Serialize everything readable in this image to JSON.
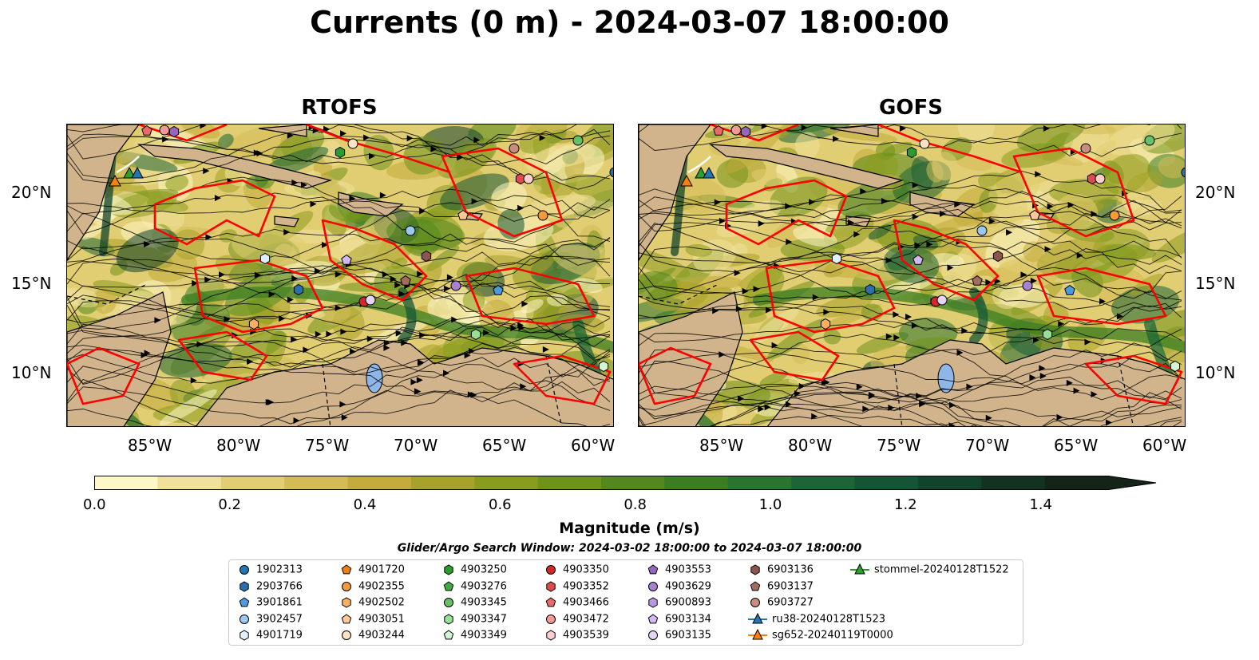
{
  "title": "Currents (0 m) - 2024-03-07 18:00:00",
  "panels": [
    {
      "title": "RTOFS"
    },
    {
      "title": "GOFS"
    }
  ],
  "axes": {
    "lon_ticks": [
      "85°W",
      "80°W",
      "75°W",
      "70°W",
      "65°W",
      "60°W"
    ],
    "lat_ticks": [
      "20°N",
      "15°N",
      "10°N"
    ]
  },
  "colorbar": {
    "label": "Magnitude (m/s)",
    "ticks": [
      "0.0",
      "0.2",
      "0.4",
      "0.6",
      "0.8",
      "1.0",
      "1.2",
      "1.4"
    ],
    "range": [
      0,
      1.5
    ],
    "extend": "max",
    "colors": [
      "#fdf8c7",
      "#f0e29a",
      "#e1cd72",
      "#d3bb55",
      "#c3ab3c",
      "#a7a22a",
      "#8a9c1d",
      "#6f9219",
      "#52881c",
      "#3b7d22",
      "#2a7330",
      "#1d6536",
      "#155535",
      "#12442d",
      "#123322",
      "#152418"
    ]
  },
  "search_window": "Glider/Argo Search Window: 2024-03-02 18:00:00 to 2024-03-07 18:00:00",
  "legend": {
    "items": [
      {
        "label": "1902313",
        "marker": "circle",
        "color": "#1f77b4"
      },
      {
        "label": "2903766",
        "marker": "hexagon",
        "color": "#2a6fb0"
      },
      {
        "label": "3901861",
        "marker": "pentagon",
        "color": "#4c9be0"
      },
      {
        "label": "3902457",
        "marker": "circle",
        "color": "#9cc8f0"
      },
      {
        "label": "4901719",
        "marker": "hexagon",
        "color": "#dff0fb"
      },
      {
        "label": "4901720",
        "marker": "pentagon",
        "color": "#f07f0e"
      },
      {
        "label": "4902355",
        "marker": "circle",
        "color": "#f59b3a"
      },
      {
        "label": "4902502",
        "marker": "hexagon",
        "color": "#f8b060"
      },
      {
        "label": "4903051",
        "marker": "pentagon",
        "color": "#fcc996"
      },
      {
        "label": "4903244",
        "marker": "circle",
        "color": "#fde3c4"
      },
      {
        "label": "4903250",
        "marker": "hexagon",
        "color": "#2a9d2a"
      },
      {
        "label": "4903276",
        "marker": "pentagon",
        "color": "#3fae3f"
      },
      {
        "label": "4903345",
        "marker": "circle",
        "color": "#66c266"
      },
      {
        "label": "4903347",
        "marker": "hexagon",
        "color": "#98e098"
      },
      {
        "label": "4903349",
        "marker": "pentagon",
        "color": "#d3f5d3"
      },
      {
        "label": "4903350",
        "marker": "circle",
        "color": "#d62728"
      },
      {
        "label": "4903352",
        "marker": "hexagon",
        "color": "#e04a4a"
      },
      {
        "label": "4903466",
        "marker": "pentagon",
        "color": "#ea6a6a"
      },
      {
        "label": "4903472",
        "marker": "circle",
        "color": "#f29b94"
      },
      {
        "label": "4903539",
        "marker": "hexagon",
        "color": "#fbd0cc"
      },
      {
        "label": "4903553",
        "marker": "pentagon",
        "color": "#9467bd"
      },
      {
        "label": "4903629",
        "marker": "circle",
        "color": "#a782d0"
      },
      {
        "label": "6900893",
        "marker": "hexagon",
        "color": "#b898e0"
      },
      {
        "label": "6903134",
        "marker": "pentagon",
        "color": "#d2b8f0"
      },
      {
        "label": "6903135",
        "marker": "circle",
        "color": "#e6d4f7"
      },
      {
        "label": "6903136",
        "marker": "hexagon",
        "color": "#8c564b"
      },
      {
        "label": "6903137",
        "marker": "pentagon",
        "color": "#a56b5f"
      },
      {
        "label": "6903727",
        "marker": "circle",
        "color": "#c98c7e"
      },
      {
        "label": "ru38-20240128T1523",
        "marker": "triangle-line",
        "color": "#1f77b4"
      },
      {
        "label": "sg652-20240119T0000",
        "marker": "triangle-line",
        "color": "#ff7f0e"
      },
      {
        "label": "stommel-20240128T1522",
        "marker": "triangle-line",
        "color": "#2ca02c"
      }
    ]
  }
}
